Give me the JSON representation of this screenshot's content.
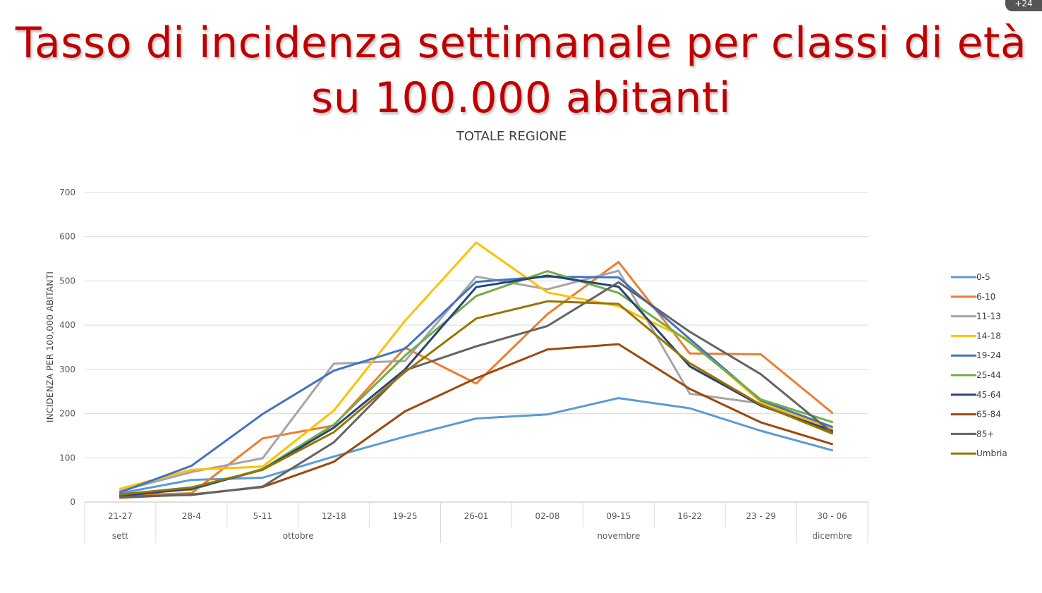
{
  "slide": {
    "title_line1": "Tasso di incidenza settimanale per classi di età",
    "title_line2": "su 100.000 abitanti",
    "corner_badge": "+24"
  },
  "chart_data": {
    "type": "line",
    "title": "TOTALE REGIONE",
    "ylabel": "INCIDENZA PER 100,000 ABITANTI",
    "xlabel": "",
    "ylim": [
      0,
      700
    ],
    "yticks": [
      0,
      100,
      200,
      300,
      400,
      500,
      600,
      700
    ],
    "grid": true,
    "legend_position": "right",
    "categories": [
      "21-27",
      "28-4",
      "5-11",
      "12-18",
      "19-25",
      "26-01",
      "02-08",
      "09-15",
      "16-22",
      "23 - 29",
      "30 - 06"
    ],
    "groups": [
      {
        "label": "sett",
        "start": 0,
        "end": 0
      },
      {
        "label": "ottobre",
        "start": 1,
        "end": 4
      },
      {
        "label": "novembre",
        "start": 5,
        "end": 9
      },
      {
        "label": "dicembre",
        "start": 10,
        "end": 10
      }
    ],
    "series": [
      {
        "name": "0-5",
        "color": "#5b9bd5",
        "values": [
          20,
          50,
          55,
          103,
          148,
          189,
          198,
          235,
          212,
          161,
          117
        ]
      },
      {
        "name": "6-10",
        "color": "#ed7d31",
        "values": [
          15,
          20,
          144,
          173,
          349,
          268,
          425,
          543,
          336,
          334,
          202
        ]
      },
      {
        "name": "11-13",
        "color": "#a5a5a5",
        "values": [
          25,
          68,
          99,
          313,
          319,
          510,
          481,
          523,
          245,
          223,
          160
        ]
      },
      {
        "name": "14-18",
        "color": "#ffc000",
        "values": [
          30,
          73,
          80,
          207,
          410,
          587,
          474,
          443,
          366,
          226,
          165
        ]
      },
      {
        "name": "19-24",
        "color": "#4472c4",
        "values": [
          22,
          82,
          199,
          297,
          347,
          498,
          510,
          508,
          369,
          230,
          170
        ]
      },
      {
        "name": "25-44",
        "color": "#70ad47",
        "values": [
          18,
          28,
          75,
          175,
          331,
          466,
          522,
          473,
          361,
          232,
          181
        ]
      },
      {
        "name": "45-64",
        "color": "#264478",
        "values": [
          14,
          30,
          73,
          168,
          300,
          486,
          512,
          487,
          307,
          218,
          161
        ]
      },
      {
        "name": "65-84",
        "color": "#9e480e",
        "values": [
          10,
          17,
          34,
          91,
          205,
          280,
          345,
          357,
          256,
          180,
          131
        ]
      },
      {
        "name": "85+",
        "color": "#636363",
        "values": [
          12,
          16,
          35,
          135,
          298,
          352,
          398,
          497,
          385,
          289,
          157
        ]
      },
      {
        "name": "Umbria",
        "color": "#997300",
        "values": [
          17,
          33,
          73,
          158,
          294,
          415,
          454,
          448,
          314,
          220,
          155
        ]
      }
    ]
  }
}
